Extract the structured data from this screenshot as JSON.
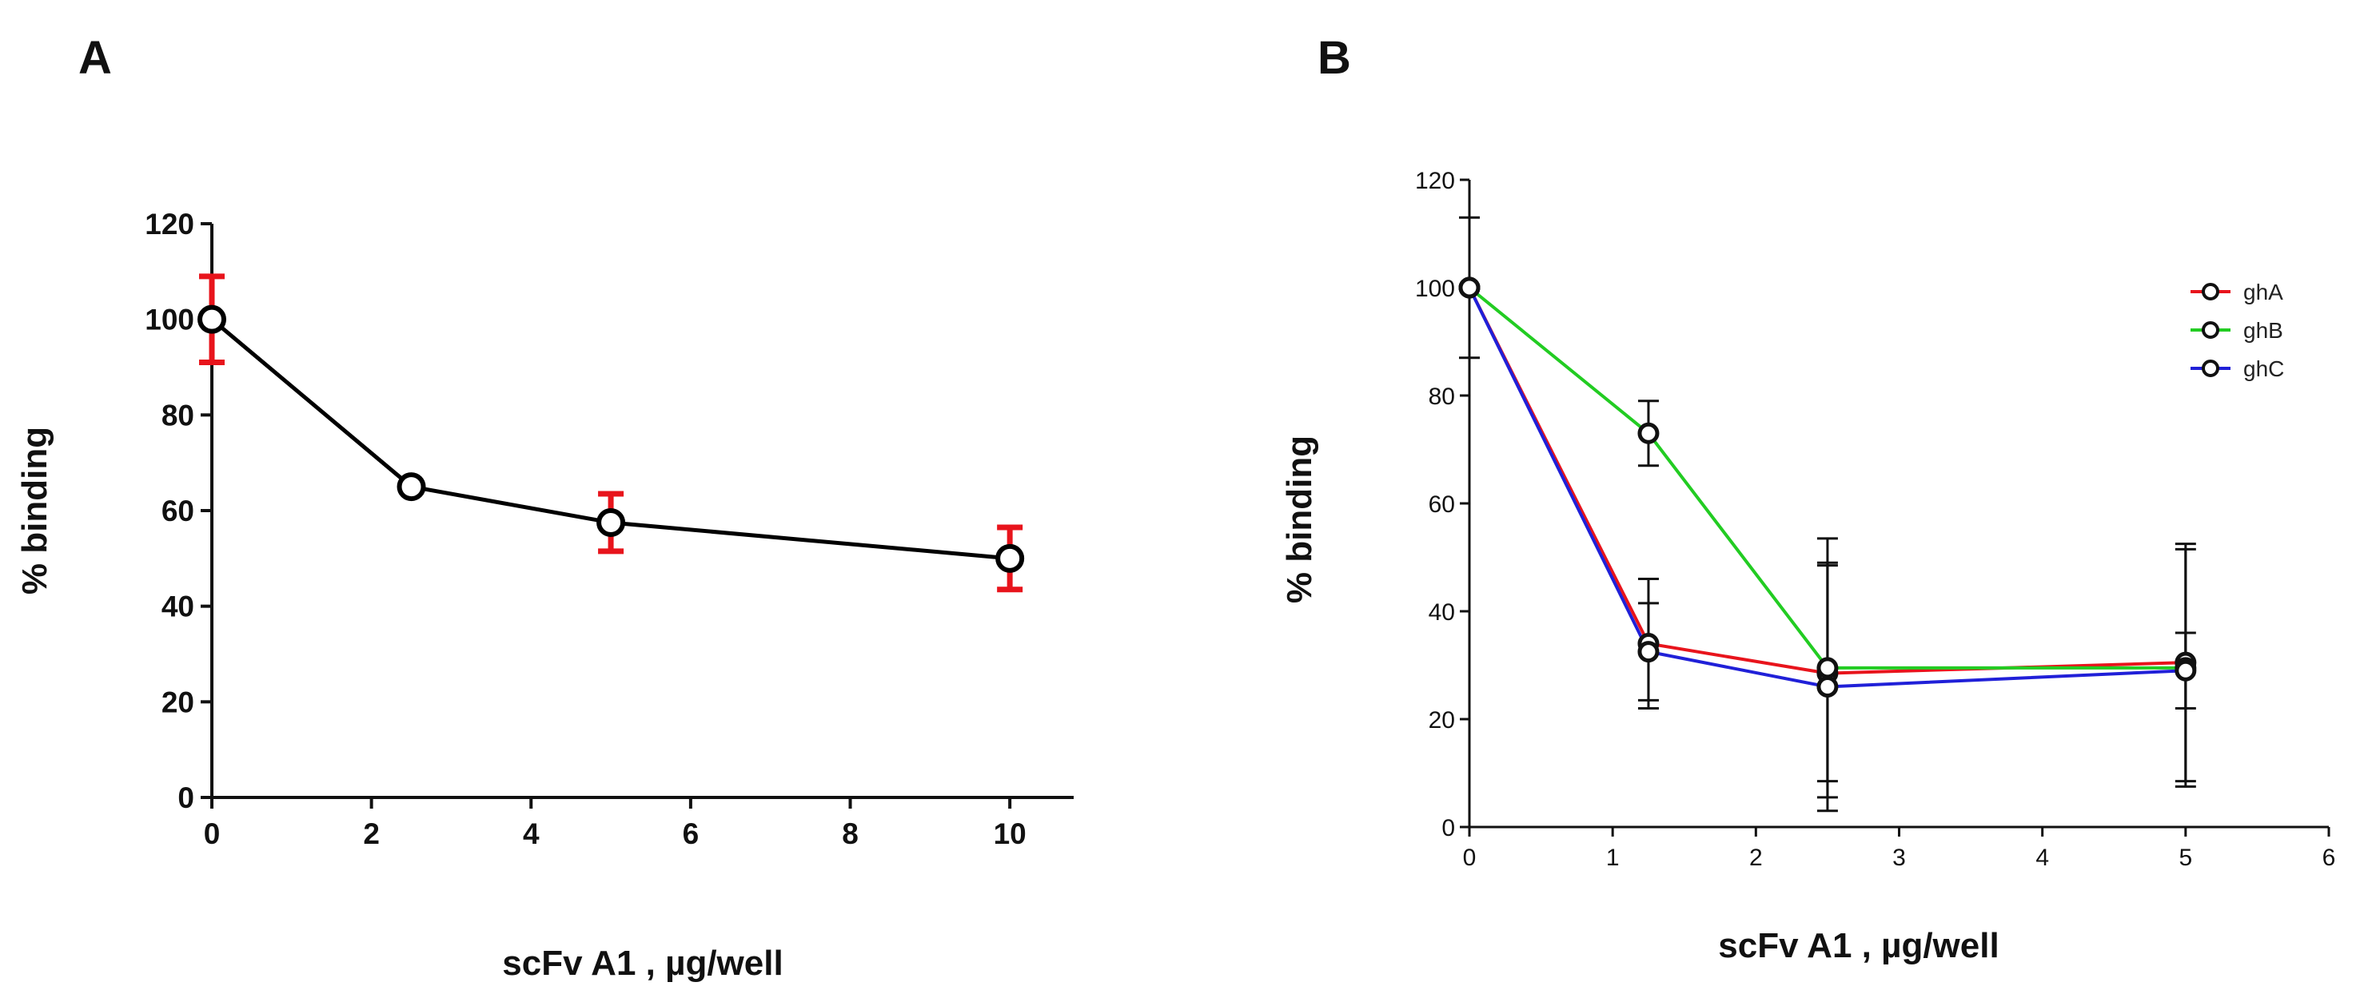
{
  "chart_data": [
    {
      "panel": "A",
      "type": "line",
      "xlabel": "scFv A1 , µg/well",
      "ylabel": "%  binding",
      "xlim": [
        0,
        10.8
      ],
      "ylim": [
        0,
        120
      ],
      "xticks": [
        0,
        2,
        4,
        6,
        8,
        10
      ],
      "yticks": [
        0,
        20,
        40,
        60,
        80,
        100,
        120
      ],
      "grid": false,
      "colors": {
        "line": "#000000",
        "marker": "#000000",
        "error": "#e8141c"
      },
      "series": [
        {
          "x": [
            0,
            2.5,
            5,
            10
          ],
          "y": [
            100,
            65,
            57.5,
            50
          ],
          "err": [
            9,
            0,
            6,
            6.5
          ]
        }
      ]
    },
    {
      "panel": "B",
      "type": "line",
      "xlabel": "scFv A1 , µg/well",
      "ylabel": "%  binding",
      "xlim": [
        0,
        6
      ],
      "ylim": [
        0,
        120
      ],
      "xticks": [
        0,
        1,
        2,
        3,
        4,
        5,
        6
      ],
      "yticks": [
        0,
        20,
        40,
        60,
        80,
        100,
        120
      ],
      "grid": false,
      "legend": "top-right",
      "series": [
        {
          "name": "ghA",
          "color": "#e8141c",
          "x": [
            0,
            1.25,
            2.5,
            5
          ],
          "y": [
            100,
            34,
            28.5,
            30.5
          ],
          "err": [
            0,
            12,
            20,
            22
          ]
        },
        {
          "name": "ghB",
          "color": "#22cc22",
          "x": [
            0,
            1.25,
            2.5,
            5
          ],
          "y": [
            100,
            73,
            29.5,
            29.5
          ],
          "err": [
            0,
            6,
            24,
            22
          ]
        },
        {
          "name": "ghC",
          "color": "#2020d8",
          "x": [
            0,
            1.25,
            2.5,
            5
          ],
          "y": [
            100,
            32.5,
            26,
            29
          ],
          "err": [
            13,
            9,
            23,
            7
          ]
        }
      ]
    }
  ],
  "panel_a_letter": "A",
  "panel_b_letter": "B"
}
